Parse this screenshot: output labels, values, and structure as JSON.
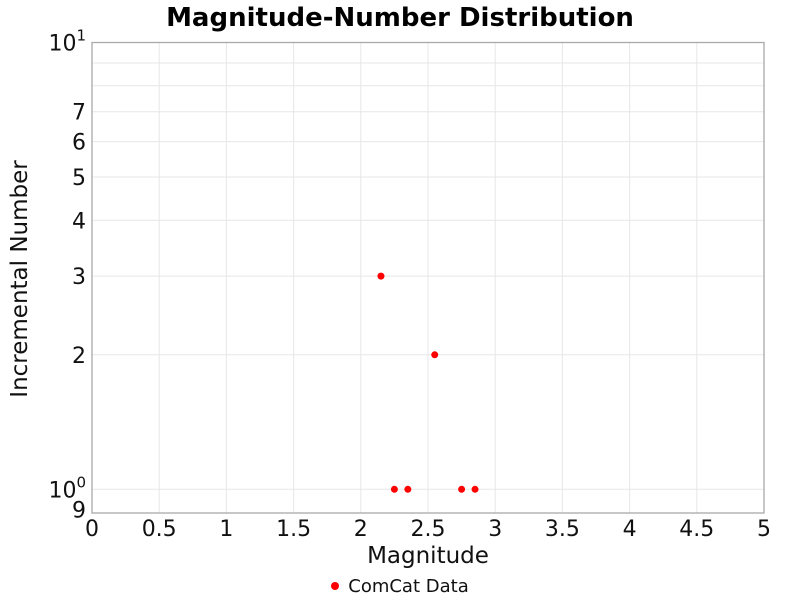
{
  "figure": {
    "title": "Magnitude-Number Distribution",
    "xlabel": "Magnitude",
    "ylabel": "Incremental Number"
  },
  "legend": {
    "label": "ComCat Data",
    "marker_color": "#ff0000"
  },
  "chart_data": {
    "type": "scatter",
    "title": "Magnitude-Number Distribution",
    "xlabel": "Magnitude",
    "ylabel": "Incremental Number",
    "xscale": "linear",
    "yscale": "log",
    "xlim": [
      0,
      5
    ],
    "ylim": [
      0.9,
      10
    ],
    "grid": true,
    "legend_position": "bottom-center",
    "series": [
      {
        "name": "ComCat Data",
        "color": "#ff0000",
        "marker": "circle",
        "marker_diameter_px": 7,
        "points": [
          {
            "x": 2.15,
            "y": 3
          },
          {
            "x": 2.25,
            "y": 1
          },
          {
            "x": 2.35,
            "y": 1
          },
          {
            "x": 2.55,
            "y": 2
          },
          {
            "x": 2.75,
            "y": 1
          },
          {
            "x": 2.85,
            "y": 1
          }
        ]
      }
    ],
    "x_ticks": [
      0,
      0.5,
      1,
      1.5,
      2,
      2.5,
      3,
      3.5,
      4,
      4.5,
      5
    ],
    "y_ticks": {
      "major": [
        {
          "value": 10,
          "base": "10",
          "exponent": "1"
        },
        {
          "value": 1,
          "base": "10",
          "exponent": "0"
        }
      ],
      "minor_labeled": [
        {
          "value": 0.9,
          "label": "9"
        },
        {
          "value": 2,
          "label": "2"
        },
        {
          "value": 3,
          "label": "3"
        },
        {
          "value": 4,
          "label": "4"
        },
        {
          "value": 5,
          "label": "5"
        },
        {
          "value": 6,
          "label": "6"
        },
        {
          "value": 7,
          "label": "7"
        }
      ],
      "gridline_values": [
        1,
        2,
        3,
        4,
        5,
        6,
        7,
        8,
        9
      ]
    },
    "colors": {
      "grid": "#e7e7e7",
      "spine": "#a9a9a9",
      "text": "#111111",
      "background": "#ffffff"
    }
  }
}
